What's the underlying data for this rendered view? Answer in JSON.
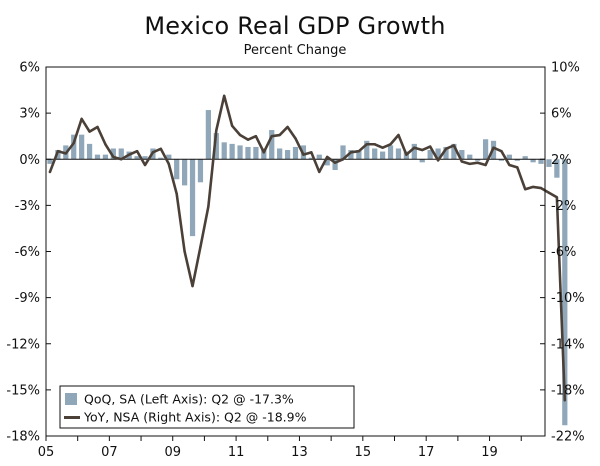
{
  "chart_data": {
    "type": "bar+line",
    "title": "Mexico Real GDP Growth",
    "subtitle": "Percent Change",
    "x_axis": {
      "range": [
        2005.0,
        2020.75
      ],
      "ticks": [
        {
          "value": 2005,
          "label": "05"
        },
        {
          "value": 2007,
          "label": "07"
        },
        {
          "value": 2009,
          "label": "09"
        },
        {
          "value": 2011,
          "label": "11"
        },
        {
          "value": 2013,
          "label": "13"
        },
        {
          "value": 2015,
          "label": "15"
        },
        {
          "value": 2017,
          "label": "17"
        },
        {
          "value": 2019,
          "label": "19"
        }
      ]
    },
    "left_axis": {
      "range": [
        -18,
        6
      ],
      "ticks": [
        {
          "value": 6,
          "label": "6%"
        },
        {
          "value": 3,
          "label": "3%"
        },
        {
          "value": 0,
          "label": "0%"
        },
        {
          "value": -3,
          "label": "-3%"
        },
        {
          "value": -6,
          "label": "-6%"
        },
        {
          "value": -9,
          "label": "-9%"
        },
        {
          "value": -12,
          "label": "-12%"
        },
        {
          "value": -15,
          "label": "-15%"
        },
        {
          "value": -18,
          "label": "-18%"
        }
      ]
    },
    "right_axis": {
      "range": [
        -22,
        10
      ],
      "ticks": [
        {
          "value": 10,
          "label": "10%"
        },
        {
          "value": 6,
          "label": "6%"
        },
        {
          "value": 2,
          "label": "2%"
        },
        {
          "value": -2,
          "label": "-2%"
        },
        {
          "value": -6,
          "label": "-6%"
        },
        {
          "value": -10,
          "label": "-10%"
        },
        {
          "value": -14,
          "label": "-14%"
        },
        {
          "value": -18,
          "label": "-18%"
        },
        {
          "value": -22,
          "label": "-22%"
        }
      ]
    },
    "series": [
      {
        "name": "QoQ, SA (Left Axis): Q2 @ -17.3%",
        "axis": "left",
        "kind": "bar",
        "color": "#8fa7b8",
        "start": 2005.0,
        "step": 0.25,
        "values": [
          -0.3,
          0.6,
          0.9,
          1.6,
          1.6,
          1.0,
          0.3,
          0.3,
          0.7,
          0.7,
          0.5,
          0.2,
          0.2,
          0.7,
          0.1,
          0.3,
          -1.3,
          -1.7,
          -5.0,
          -1.5,
          3.2,
          1.7,
          1.1,
          1.0,
          0.9,
          0.8,
          0.8,
          0.7,
          1.9,
          0.7,
          0.6,
          0.8,
          0.9,
          0.1,
          0.3,
          -0.4,
          -0.7,
          0.9,
          0.6,
          0.6,
          1.2,
          0.7,
          0.5,
          0.9,
          0.7,
          0.5,
          1.0,
          -0.2,
          0.6,
          0.7,
          0.8,
          1.0,
          0.6,
          0.3,
          -0.1,
          1.3,
          1.2,
          -0.1,
          0.3,
          -0.1,
          0.2,
          -0.2,
          -0.3,
          -0.5,
          -1.2,
          -17.3
        ]
      },
      {
        "name": "YoY, NSA (Right Axis): Q2 @ -18.9%",
        "axis": "right",
        "kind": "line",
        "color": "#4a4038",
        "start": 2005.0,
        "step": 0.25,
        "values": [
          0.9,
          2.7,
          2.5,
          3.4,
          5.5,
          4.4,
          4.8,
          3.3,
          2.2,
          2.0,
          2.4,
          2.7,
          1.5,
          2.6,
          2.9,
          1.6,
          -1.0,
          -6.0,
          -9.0,
          -5.6,
          -2.1,
          4.5,
          7.5,
          4.9,
          4.1,
          3.7,
          4.0,
          2.6,
          4.0,
          4.1,
          4.8,
          3.8,
          2.4,
          2.6,
          0.9,
          2.2,
          1.7,
          2.0,
          2.6,
          2.7,
          3.3,
          3.3,
          3.0,
          3.3,
          4.1,
          2.4,
          3.0,
          2.8,
          3.1,
          1.9,
          2.9,
          3.2,
          1.8,
          1.6,
          1.7,
          1.5,
          3.0,
          2.7,
          1.5,
          1.3,
          -0.6,
          -0.4,
          -0.5,
          -0.9,
          -1.3,
          -18.9
        ]
      }
    ]
  }
}
